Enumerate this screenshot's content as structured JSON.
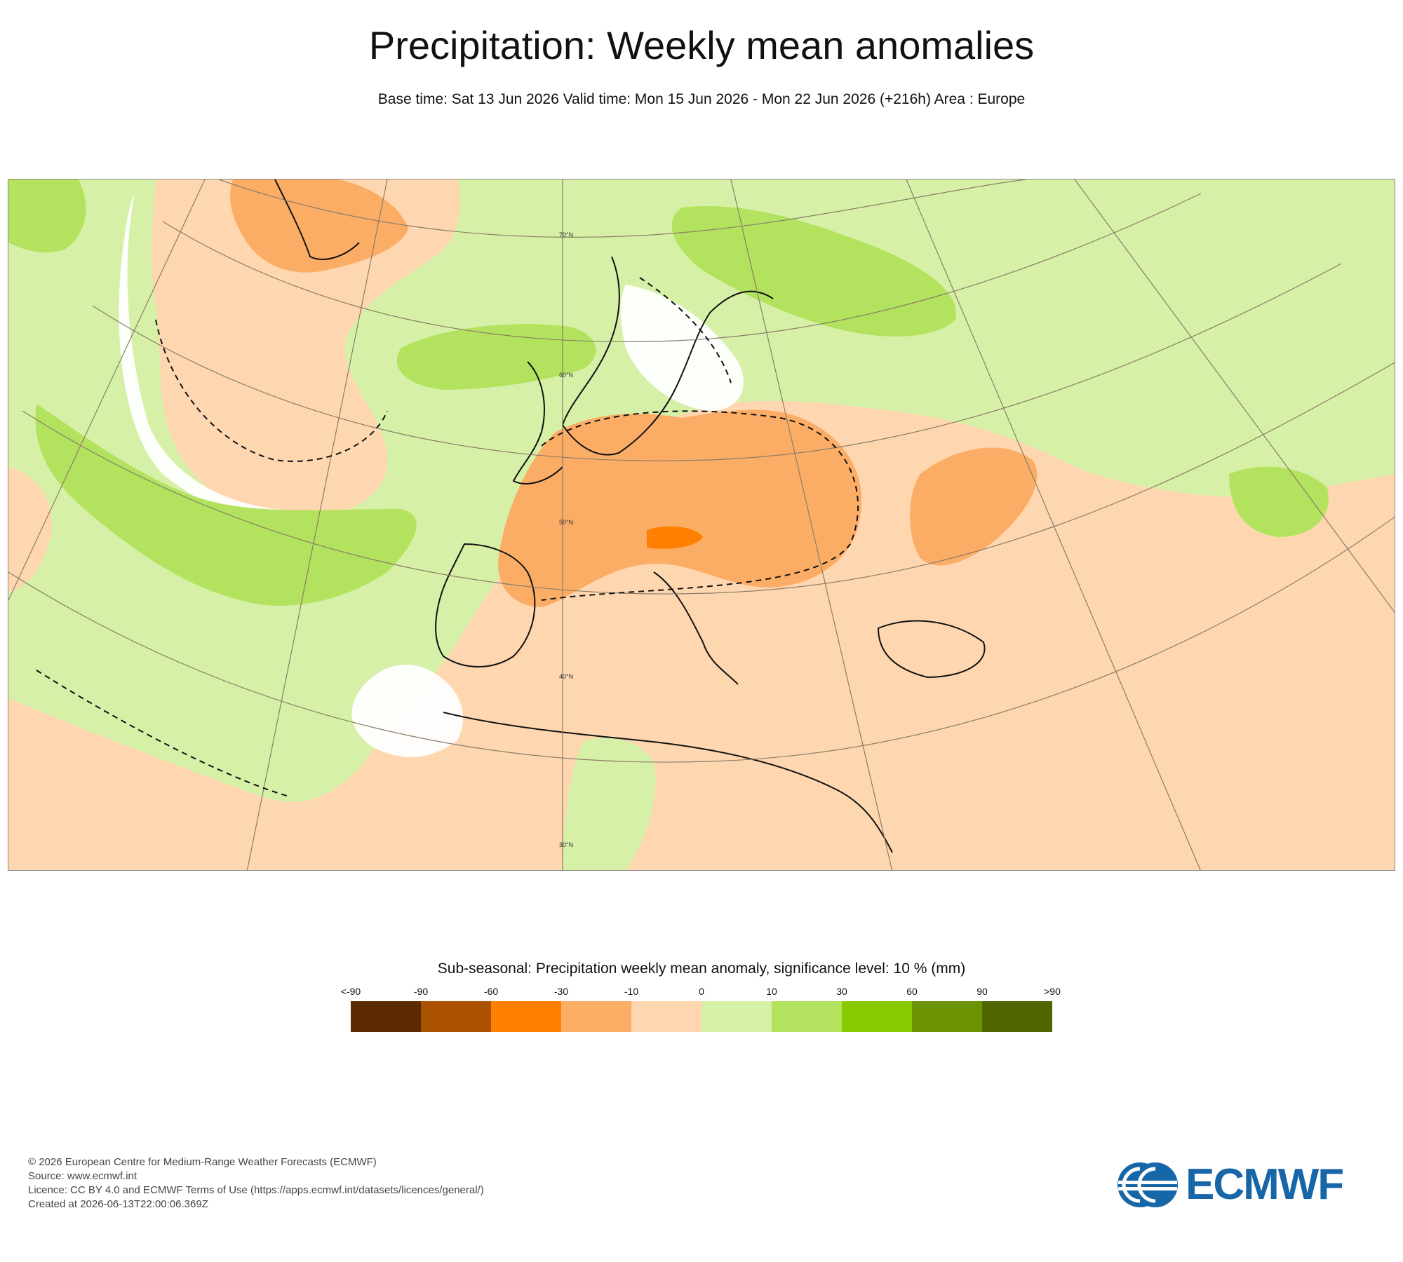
{
  "header": {
    "title": "Precipitation: Weekly mean anomalies",
    "subtitle": "Base time: Sat 13 Jun 2026 Valid time: Mon 15 Jun 2026 - Mon 22 Jun 2026 (+216h) Area : Europe"
  },
  "map": {
    "lat_labels": [
      "70°N",
      "60°N",
      "50°N",
      "40°N",
      "30°N"
    ],
    "colors": {
      "dry_strong": "#fbad66",
      "dry_weak": "#fed7b0",
      "dry_deep": "#ff8000",
      "neutral": "#ffffff",
      "wet_weak": "#d7f0a8",
      "wet_moderate": "#b3e35e",
      "wet_strong": "#89c900",
      "coastline": "#111111",
      "graticule": "#8a7d66"
    }
  },
  "legend": {
    "title": "Sub-seasonal: Precipitation weekly mean anomaly, significance level: 10 % (mm)",
    "labels": [
      "<-90",
      "-90",
      "-60",
      "-30",
      "-10",
      "0",
      "10",
      "30",
      "60",
      "90",
      ">90"
    ],
    "colors": [
      "#5c2a00",
      "#ab5200",
      "#ff8000",
      "#fbad66",
      "#fed7b0",
      "#d7f0a8",
      "#b3e35e",
      "#89c900",
      "#6b9200",
      "#4f6600"
    ]
  },
  "footer": {
    "lines": [
      "© 2026 European Centre for Medium-Range Weather Forecasts (ECMWF)",
      "Source: www.ecmwf.int",
      "Licence: CC BY 4.0 and ECMWF Terms of Use (https://apps.ecmwf.int/datasets/licences/general/)",
      "Created at 2026-06-13T22:00:06.369Z"
    ],
    "logo_text": "ECMWF"
  }
}
